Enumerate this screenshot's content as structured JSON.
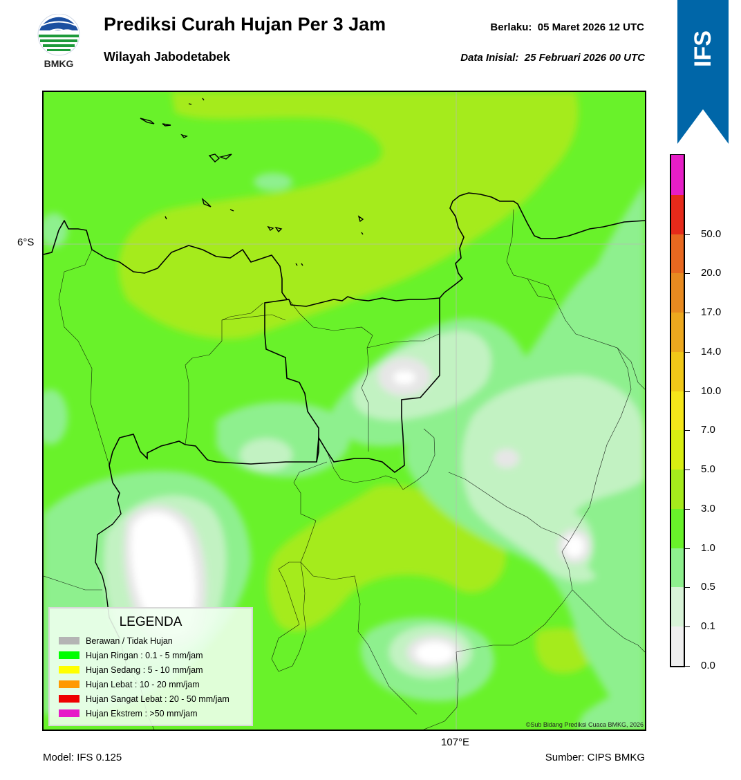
{
  "header": {
    "title": "Prediksi Curah Hujan Per 3 Jam",
    "subtitle": "Wilayah Jabodetabek",
    "valid_label": "Berlaku:  05 Maret 2026 12 UTC",
    "init_label": "Data Inisial:  25 Februari 2026 00 UTC"
  },
  "logo": {
    "text": "BMKG",
    "icon": "bmkg-logo"
  },
  "ribbon": {
    "text": "IFS",
    "color": "#0066a8"
  },
  "map": {
    "lat_label": "6°S",
    "lon_label": "107°E",
    "copyright": "©Sub Bidang Prediksi Cuaca BMKG, 2026"
  },
  "legend": {
    "title": "LEGENDA",
    "items": [
      {
        "label": "Berawan / Tidak Hujan",
        "color": "#b4b4b4"
      },
      {
        "label": "Hujan Ringan : 0.1 - 5 mm/jam",
        "color": "#00ff00"
      },
      {
        "label": "Hujan Sedang : 5 - 10 mm/jam",
        "color": "#ffff00"
      },
      {
        "label": "Hujan Lebat : 10 - 20 mm/jam",
        "color": "#ff9900"
      },
      {
        "label": "Hujan Sangat Lebat : 20 - 50 mm/jam",
        "color": "#ee0000"
      },
      {
        "label": "Hujan Ekstrem : >50 mm/jam",
        "color": "#e619c8"
      }
    ]
  },
  "colorbar": {
    "levels": [
      "0.0",
      "0.1",
      "0.5",
      "1.0",
      "3.0",
      "5.0",
      "7.0",
      "10.0",
      "14.0",
      "17.0",
      "20.0",
      "50.0"
    ],
    "colors": [
      "#efefef",
      "#d8f3d8",
      "#8ef08e",
      "#69f22a",
      "#a5eb1c",
      "#d8ee12",
      "#f5e61a",
      "#f0c818",
      "#eca81e",
      "#e88a20",
      "#e86820",
      "#e62a1a",
      "#e61ec6"
    ]
  },
  "footer": {
    "model": "Model: IFS 0.125",
    "source": "Sumber: CIPS BMKG"
  }
}
